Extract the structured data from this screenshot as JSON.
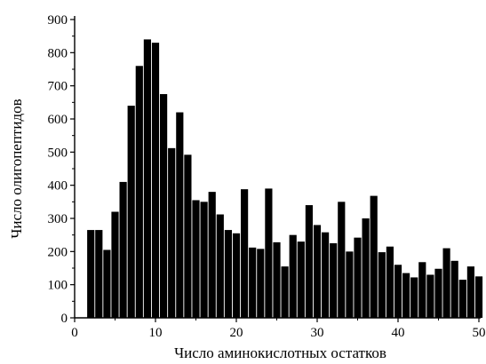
{
  "chart_data": {
    "type": "bar",
    "title": "",
    "xlabel": "Число аминокислотных остатков",
    "ylabel": "Число олигопептидов",
    "xlim": [
      0,
      50
    ],
    "ylim": [
      0,
      900
    ],
    "xticks": [
      0,
      10,
      20,
      30,
      40,
      50
    ],
    "yticks": [
      0,
      100,
      200,
      300,
      400,
      500,
      600,
      700,
      800,
      900
    ],
    "grid": false,
    "legend": "none",
    "bar_color": "#000000",
    "x": [
      2,
      3,
      4,
      5,
      6,
      7,
      8,
      9,
      10,
      11,
      12,
      13,
      14,
      15,
      16,
      17,
      18,
      19,
      20,
      21,
      22,
      23,
      24,
      25,
      26,
      27,
      28,
      29,
      30,
      31,
      32,
      33,
      34,
      35,
      36,
      37,
      38,
      39,
      40,
      41,
      42,
      43,
      44,
      45,
      46,
      47,
      48,
      49,
      50
    ],
    "values": [
      265,
      265,
      205,
      320,
      410,
      640,
      760,
      840,
      830,
      675,
      512,
      620,
      492,
      355,
      350,
      380,
      312,
      265,
      255,
      388,
      212,
      208,
      390,
      228,
      155,
      250,
      230,
      340,
      280,
      258,
      225,
      350,
      200,
      242,
      300,
      368,
      198,
      215,
      160,
      135,
      122,
      168,
      130,
      148,
      210,
      172,
      115,
      155,
      125
    ]
  }
}
